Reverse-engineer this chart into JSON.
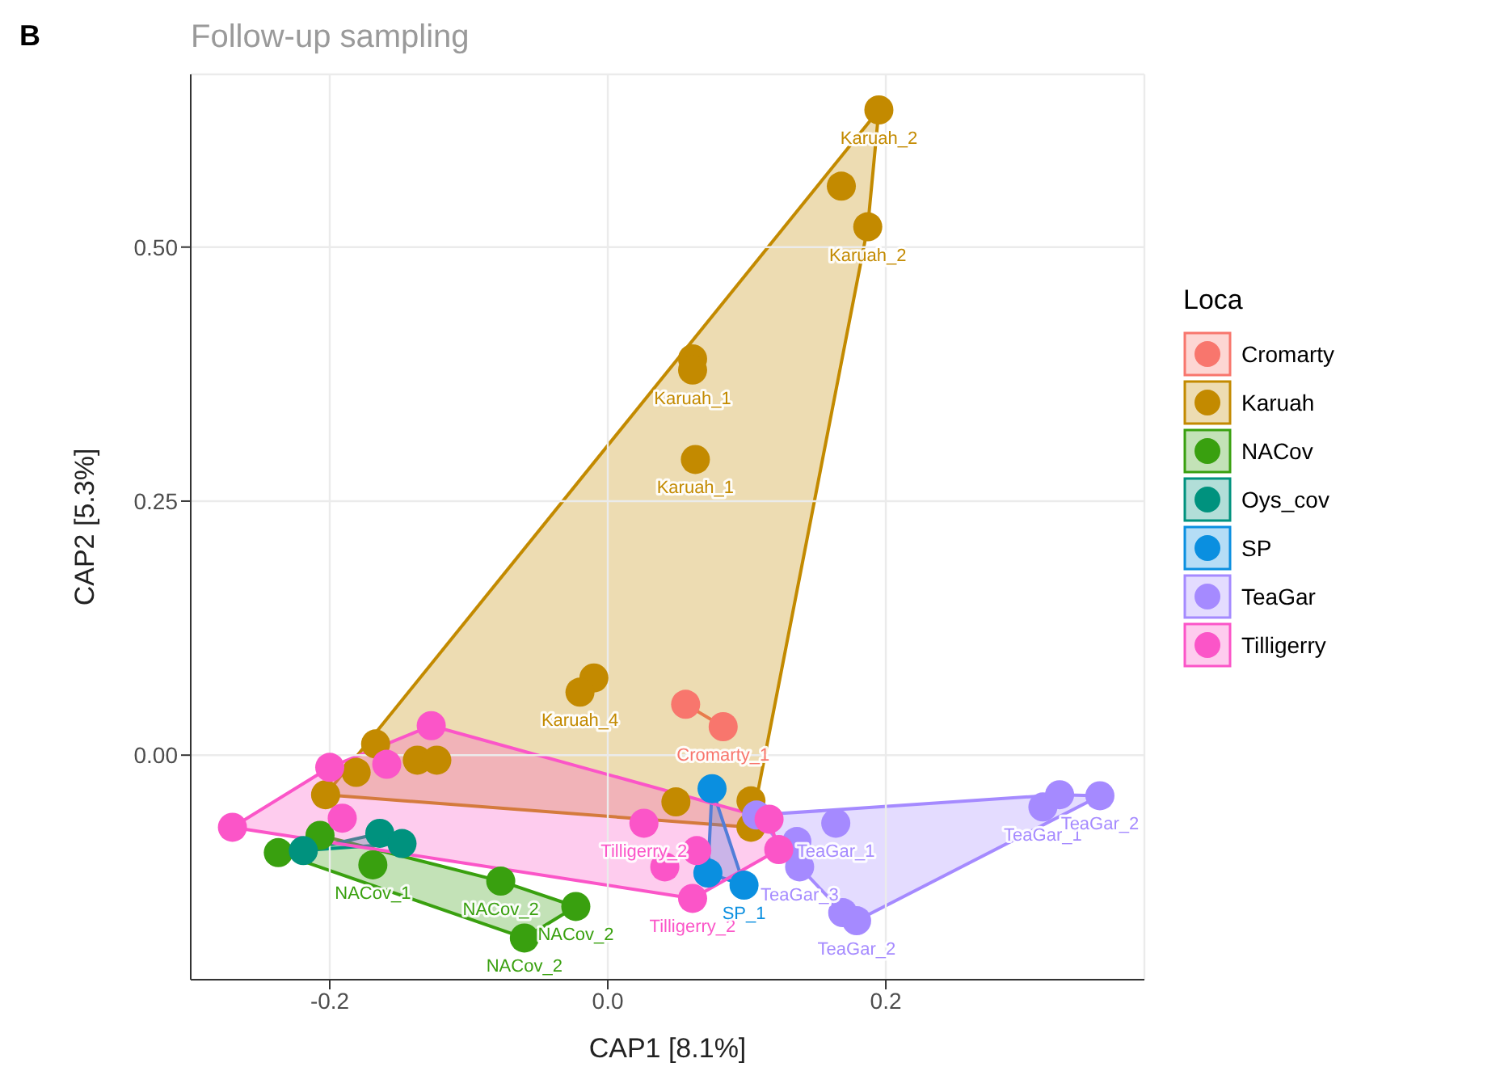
{
  "chart_data": {
    "type": "scatter",
    "title": "Follow-up sampling",
    "xlabel": "CAP1  [8.1%]",
    "ylabel": "CAP2  [5.3%]",
    "legend_title": "Loca",
    "xlim": [
      -0.3,
      0.386
    ],
    "ylim": [
      -0.221,
      0.67
    ],
    "xticks": [
      {
        "value": -0.2,
        "label": "-0.2"
      },
      {
        "value": 0,
        "label": "0.0"
      },
      {
        "value": 0.2,
        "label": "0.2"
      }
    ],
    "yticks": [
      {
        "value": 0,
        "label": "0.00"
      },
      {
        "value": 0.25,
        "label": "0.25"
      },
      {
        "value": 0.5,
        "label": "0.50"
      }
    ],
    "grid": true,
    "legend": "right",
    "marker": "circle",
    "series": [
      {
        "name": "Cromarty",
        "color": "#f8766d",
        "x": [
          0.056,
          0.083
        ],
        "values": [
          0.05,
          0.028
        ]
      },
      {
        "name": "Karuah",
        "color": "#c38a00",
        "x": [
          0.195,
          0.168,
          0.187,
          0.061,
          0.061,
          0.063,
          -0.01,
          -0.02,
          0.103,
          0.103,
          -0.167,
          -0.181,
          -0.203,
          -0.137,
          -0.123,
          0.049
        ],
        "values": [
          0.635,
          0.56,
          0.52,
          0.39,
          0.379,
          0.291,
          0.076,
          0.062,
          -0.045,
          -0.071,
          0.011,
          -0.017,
          -0.039,
          -0.005,
          -0.005,
          -0.046
        ]
      },
      {
        "name": "NACov",
        "color": "#39a00f",
        "x": [
          -0.237,
          -0.169,
          -0.077,
          -0.023,
          -0.06,
          -0.207
        ],
        "values": [
          -0.096,
          -0.108,
          -0.124,
          -0.149,
          -0.18,
          -0.079
        ]
      },
      {
        "name": "Oys_cov",
        "color": "#00927e",
        "x": [
          -0.164,
          -0.148,
          -0.219
        ],
        "values": [
          -0.077,
          -0.087,
          -0.094
        ]
      },
      {
        "name": "SP",
        "color": "#0a8fe0",
        "x": [
          0.075,
          0.072,
          0.098
        ],
        "values": [
          -0.033,
          -0.116,
          -0.128
        ]
      },
      {
        "name": "TeaGar",
        "color": "#a58aff",
        "x": [
          0.164,
          0.136,
          0.138,
          0.169,
          0.179,
          0.313,
          0.325,
          0.354,
          0.107
        ],
        "values": [
          -0.067,
          -0.085,
          -0.11,
          -0.155,
          -0.163,
          -0.051,
          -0.039,
          -0.04,
          -0.059
        ]
      },
      {
        "name": "Tilligerry",
        "color": "#fb55c8",
        "x": [
          -0.27,
          -0.2,
          -0.127,
          -0.159,
          -0.191,
          0.026,
          0.041,
          0.064,
          0.061,
          0.123,
          0.116
        ],
        "values": [
          -0.071,
          -0.012,
          0.029,
          -0.009,
          -0.062,
          -0.067,
          -0.11,
          -0.094,
          -0.141,
          -0.093,
          -0.063
        ]
      }
    ],
    "annotations": [
      "B",
      {
        "text": "Karuah_2",
        "x": 0.195,
        "y": 0.635
      },
      {
        "text": "Karuah_2",
        "x": 0.187,
        "y": 0.52
      },
      {
        "text": "Karuah_1",
        "x": 0.061,
        "y": 0.379
      },
      {
        "text": "Karuah_1",
        "x": 0.063,
        "y": 0.291
      },
      {
        "text": "Karuah_4",
        "x": -0.02,
        "y": 0.062
      },
      {
        "text": "Cromarty_1",
        "x": 0.083,
        "y": 0.028
      },
      {
        "text": "Tilligerry_2",
        "x": 0.026,
        "y": -0.067
      },
      {
        "text": "Tilligerry_2",
        "x": 0.061,
        "y": -0.141
      },
      {
        "text": "NACov_1",
        "x": -0.169,
        "y": -0.108
      },
      {
        "text": "NACov_2",
        "x": -0.077,
        "y": -0.124
      },
      {
        "text": "NACov_2",
        "x": -0.023,
        "y": -0.149
      },
      {
        "text": "NACov_2",
        "x": -0.06,
        "y": -0.18
      },
      {
        "text": "SP_1",
        "x": 0.098,
        "y": -0.128
      },
      {
        "text": "TeaGar_1",
        "x": 0.164,
        "y": -0.067
      },
      {
        "text": "TeaGar_3",
        "x": 0.138,
        "y": -0.11
      },
      {
        "text": "TeaGar_2",
        "x": 0.179,
        "y": -0.163
      },
      {
        "text": "TeaGar_1",
        "x": 0.313,
        "y": -0.051
      },
      {
        "text": "TeaGar_2",
        "x": 0.354,
        "y": -0.04
      }
    ]
  }
}
